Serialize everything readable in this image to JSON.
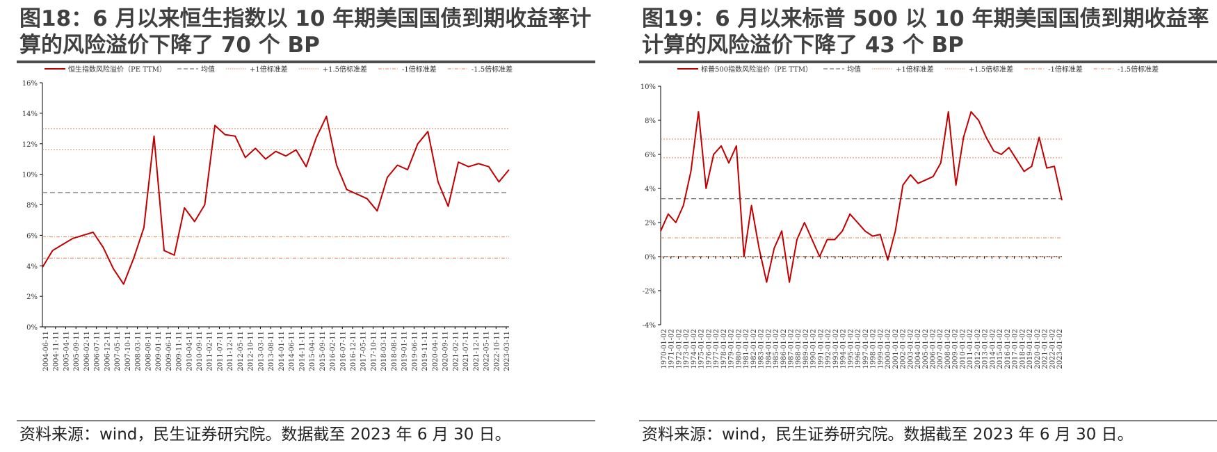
{
  "left": {
    "title": "图18：6 月以来恒生指数以 10 年期美国国债到期收益率计算的风险溢价下降了 70 个 BP",
    "source": "资料来源：wind，民生证券研究院。数据截至 2023 年 6 月 30 日。",
    "legend": [
      "恒生指数风险溢价（PE TTM）",
      "均值",
      "+1倍标准差",
      "+1.5倍标准差",
      "-1倍标准差",
      "-1.5倍标准差"
    ]
  },
  "right": {
    "title": "图19：6 月以来标普 500 以 10 年期美国国债到期收益率计算的风险溢价下降了 43 个 BP",
    "source": "资料来源：wind，民生证券研究院。数据截至 2023 年 6 月 30 日。",
    "legend": [
      "标普500指数风险溢价（PE TTM）",
      "均值",
      "+1倍标准差",
      "+1.5倍标准差",
      "-1倍标准差",
      "-1.5倍标准差"
    ]
  },
  "colors": {
    "series": "#c00000",
    "mean": "#7f7f7f",
    "band": "#e48a5a"
  },
  "chart_data": [
    {
      "type": "line",
      "ylim": [
        0,
        16
      ],
      "yticks": [
        "0%",
        "2%",
        "4%",
        "6%",
        "8%",
        "10%",
        "12%",
        "14%",
        "16%"
      ],
      "x": [
        "2004-06",
        "2004-11",
        "2005-04",
        "2005-09",
        "2006-02",
        "2006-07",
        "2006-12",
        "2007-05",
        "2007-10",
        "2008-03",
        "2008-08",
        "2009-01",
        "2009-06",
        "2009-11",
        "2010-04",
        "2010-09",
        "2011-02",
        "2011-07",
        "2011-12",
        "2012-05",
        "2012-10",
        "2013-03",
        "2013-08",
        "2014-01",
        "2014-06",
        "2014-11",
        "2015-04",
        "2015-09",
        "2016-02",
        "2016-07",
        "2016-12",
        "2017-05",
        "2017-10",
        "2018-03",
        "2018-08",
        "2019-01",
        "2019-06",
        "2019-11",
        "2020-04",
        "2020-09",
        "2021-02",
        "2021-07",
        "2021-12",
        "2022-05",
        "2022-10",
        "2023-03",
        "2023-06"
      ],
      "xticks": [
        "2004-06-11",
        "2004-11-11",
        "2005-04-11",
        "2005-09-11",
        "2006-02-11",
        "2006-07-11",
        "2006-12-11",
        "2007-05-11",
        "2007-10-11",
        "2008-03-11",
        "2008-08-11",
        "2009-01-11",
        "2009-06-11",
        "2009-11-11",
        "2010-04-11",
        "2010-09-11",
        "2011-02-11",
        "2011-07-11",
        "2011-12-11",
        "2012-05-11",
        "2012-10-11",
        "2013-03-11",
        "2013-08-11",
        "2014-01-11",
        "2014-06-11",
        "2014-11-11",
        "2015-04-11",
        "2015-09-11",
        "2016-02-11",
        "2016-07-11",
        "2016-12-11",
        "2017-05-11",
        "2017-10-11",
        "2018-03-11",
        "2018-08-11",
        "2019-01-11",
        "2019-06-11",
        "2019-11-11",
        "2020-04-11",
        "2020-09-11",
        "2021-02-11",
        "2021-07-11",
        "2021-12-11",
        "2022-05-11",
        "2022-10-11",
        "2023-03-11"
      ],
      "series": [
        {
          "name": "恒生指数风险溢价（PE TTM）",
          "values": [
            3.9,
            5.0,
            5.4,
            5.8,
            6.0,
            6.2,
            5.2,
            3.8,
            2.8,
            4.5,
            6.5,
            12.5,
            5.0,
            4.7,
            7.8,
            6.9,
            8.0,
            13.2,
            12.6,
            12.5,
            11.1,
            11.7,
            11.0,
            11.5,
            11.2,
            11.6,
            10.5,
            12.4,
            13.8,
            10.6,
            9.0,
            8.7,
            8.4,
            7.6,
            9.8,
            10.6,
            10.3,
            12.0,
            12.8,
            9.5,
            7.9,
            10.8,
            10.5,
            10.7,
            10.5,
            9.5,
            10.3
          ]
        }
      ],
      "reference_lines": {
        "mean": 8.8,
        "plus_1sd": 11.6,
        "plus_1_5sd": 13.0,
        "minus_1sd": 5.9,
        "minus_1_5sd": 4.5
      }
    },
    {
      "type": "line",
      "ylim": [
        -4,
        10
      ],
      "yticks": [
        "-4%",
        "-2%",
        "0%",
        "2%",
        "4%",
        "6%",
        "8%",
        "10%"
      ],
      "x": [
        "1970",
        "1971",
        "1972",
        "1973",
        "1974",
        "1975",
        "1976",
        "1977",
        "1978",
        "1979",
        "1980",
        "1981",
        "1982",
        "1983",
        "1984",
        "1985",
        "1986",
        "1987",
        "1988",
        "1989",
        "1990",
        "1991",
        "1992",
        "1993",
        "1994",
        "1995",
        "1996",
        "1997",
        "1998",
        "1999",
        "2000",
        "2001",
        "2002",
        "2003",
        "2004",
        "2005",
        "2006",
        "2007",
        "2008",
        "2009",
        "2010",
        "2011",
        "2012",
        "2013",
        "2014",
        "2015",
        "2016",
        "2017",
        "2018",
        "2019",
        "2020",
        "2021",
        "2022",
        "2023"
      ],
      "xticks": [
        "1970-01-02",
        "1971-01-02",
        "1972-01-02",
        "1973-01-02",
        "1974-01-02",
        "1975-01-02",
        "1976-01-02",
        "1977-01-02",
        "1978-01-02",
        "1979-01-02",
        "1980-01-02",
        "1981-01-02",
        "1982-01-02",
        "1983-01-02",
        "1984-01-02",
        "1985-01-02",
        "1986-01-02",
        "1987-01-02",
        "1988-01-02",
        "1989-01-02",
        "1990-01-02",
        "1991-01-02",
        "1992-01-02",
        "1993-01-02",
        "1994-01-02",
        "1995-01-02",
        "1996-01-02",
        "1997-01-02",
        "1998-01-02",
        "1999-01-02",
        "2000-01-02",
        "2001-01-02",
        "2002-01-02",
        "2003-01-02",
        "2004-01-02",
        "2005-01-02",
        "2006-01-02",
        "2007-01-02",
        "2008-01-02",
        "2009-01-02",
        "2010-01-02",
        "2011-01-02",
        "2012-01-02",
        "2013-01-02",
        "2014-01-02",
        "2015-01-02",
        "2016-01-02",
        "2017-01-02",
        "2018-01-02",
        "2019-01-02",
        "2020-01-02",
        "2021-01-02",
        "2022-01-02",
        "2023-01-02"
      ],
      "series": [
        {
          "name": "标普500指数风险溢价（PE TTM）",
          "values": [
            1.5,
            2.5,
            2.0,
            3.0,
            5.0,
            8.5,
            4.0,
            6.0,
            6.5,
            5.5,
            6.5,
            0.0,
            3.0,
            0.5,
            -1.5,
            0.5,
            1.5,
            -1.5,
            1.0,
            2.0,
            1.0,
            0.0,
            1.0,
            1.0,
            1.5,
            2.5,
            2.0,
            1.5,
            1.2,
            1.3,
            -0.2,
            1.5,
            4.2,
            4.8,
            4.3,
            4.5,
            4.7,
            5.5,
            8.5,
            4.2,
            7.0,
            8.5,
            8.0,
            7.0,
            6.2,
            6.0,
            6.4,
            5.7,
            5.0,
            5.3,
            7.0,
            5.2,
            5.3,
            3.3
          ]
        }
      ],
      "reference_lines": {
        "mean": 3.4,
        "plus_1sd": 5.8,
        "plus_1_5sd": 6.9,
        "minus_1sd": 1.1,
        "minus_1_5sd": 0.0
      }
    }
  ]
}
